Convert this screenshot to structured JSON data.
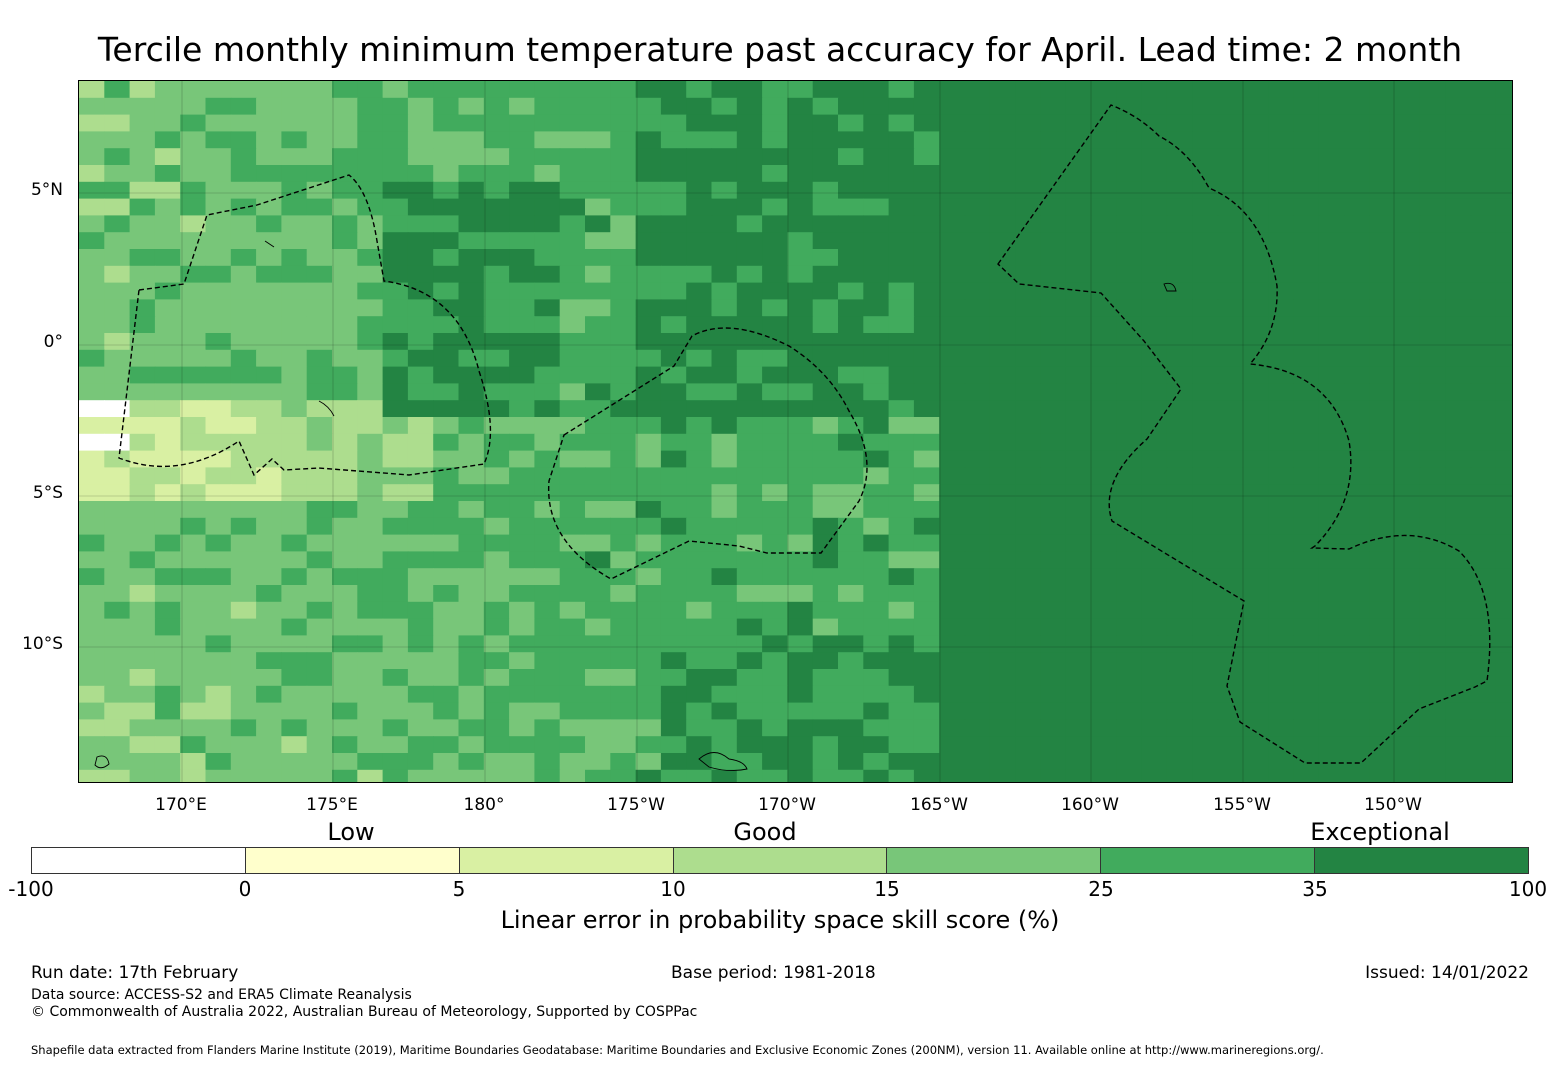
{
  "title": "Tercile monthly minimum temperature past accuracy for April. Lead time: 2 month",
  "map": {
    "lat_labels": [
      "5°N",
      "0°",
      "5°S",
      "10°S"
    ],
    "lon_labels": [
      "170°E",
      "175°E",
      "180°",
      "175°W",
      "170°W",
      "165°W",
      "160°W",
      "155°W",
      "150°W"
    ],
    "palette": [
      "#ffffff",
      "#ffffcc",
      "#d9f0a3",
      "#addd8e",
      "#78c679",
      "#41ab5d",
      "#238443"
    ]
  },
  "legend": {
    "categories": [
      "Low",
      "Good",
      "Exceptional"
    ],
    "ticks": [
      "-100",
      "0",
      "5",
      "10",
      "15",
      "25",
      "35",
      "100"
    ],
    "colors": [
      "#ffffff",
      "#ffffcc",
      "#d9f0a3",
      "#addd8e",
      "#78c679",
      "#41ab5d",
      "#238443"
    ],
    "label": "Linear error in probability space skill score (%)"
  },
  "footer": {
    "run_date": "Run date: 17th February",
    "base_period": "Base period: 1981-2018",
    "issued": "Issued: 14/01/2022",
    "data_source": "Data source: ACCESS-S2 and ERA5 Climate Reanalysis",
    "copyright": "© Commonwealth of Australia 2022, Australian Bureau of Meteorology, Supported by COSPPac",
    "shapefile": "Shapefile data extracted from Flanders Marine Institute (2019), Maritime Boundaries Geodatabase: Maritime Boundaries and Exclusive Economic Zones (200NM), version 11. Available online at http://www.marineregions.org/."
  }
}
